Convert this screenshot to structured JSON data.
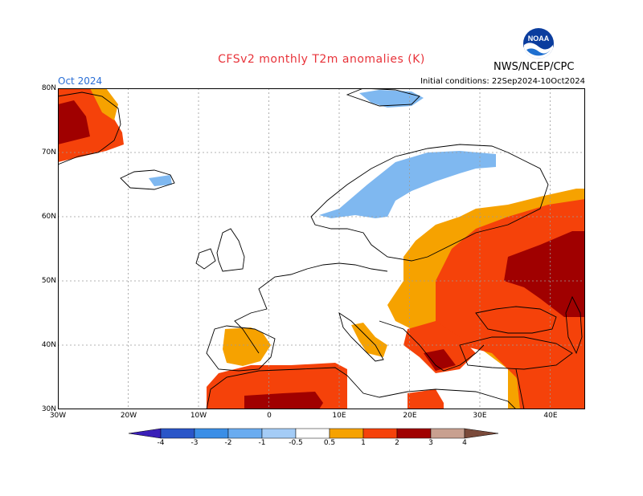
{
  "header": {
    "title": "CFSv2 monthly T2m anomalies (K)",
    "month": "Oct 2024",
    "initial_conditions": "Initial conditions: 22Sep2024-10Oct2024",
    "agency": "NWS/NCEP/CPC",
    "logo_text": "NOAA"
  },
  "map": {
    "lat_labels": [
      "80N",
      "70N",
      "60N",
      "50N",
      "40N",
      "30N"
    ],
    "lon_labels": [
      "30W",
      "20W",
      "10W",
      "0",
      "10E",
      "20E",
      "30E",
      "40E"
    ],
    "lon_range": [
      -30,
      45
    ],
    "lat_range": [
      30,
      80
    ],
    "colors": {
      "neg_0_5_1": "#7fb8f0",
      "pos_0_5_1": "#f6a200",
      "pos_1_2": "#f5420a",
      "pos_2_3": "#a00000",
      "land_outline": "#000000",
      "grid": "#9a9a9a"
    },
    "anomaly_regions": [
      {
        "class": "pos_1_2",
        "label": "Eastern Europe / Russia"
      },
      {
        "class": "pos_2_3",
        "label": "Central Russia"
      },
      {
        "class": "pos_0_5_1",
        "label": "Central Europe east"
      },
      {
        "class": "neg_0_5_1",
        "label": "Scandinavia"
      },
      {
        "class": "pos_1_2",
        "label": "North Africa"
      },
      {
        "class": "pos_2_3",
        "label": "Greenland coast"
      }
    ]
  },
  "colorbar": {
    "labels": [
      "-4",
      "-3",
      "-2",
      "-1",
      "-0.5",
      "0.5",
      "1",
      "2",
      "3",
      "4"
    ],
    "colors": [
      "#3a1fb8",
      "#2a56c8",
      "#3a8ee6",
      "#6aacf0",
      "#a4ccf6",
      "#ffffff",
      "#f6a200",
      "#f5420a",
      "#a00000",
      "#c8a090",
      "#7a4a3a"
    ]
  }
}
